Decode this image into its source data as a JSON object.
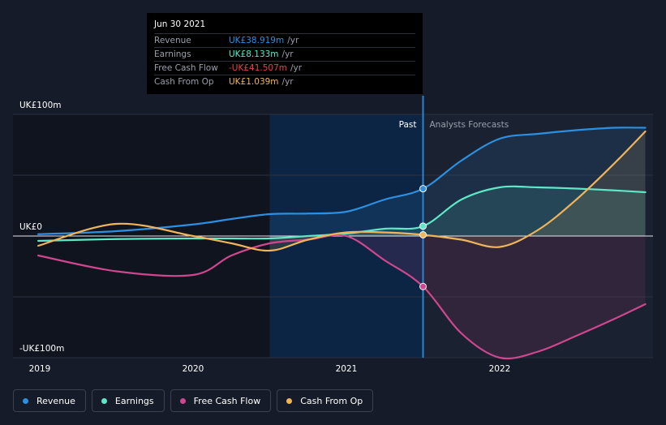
{
  "tooltip": {
    "date": "Jun 30 2021",
    "rows": [
      {
        "label": "Revenue",
        "value": "UK£38.919m",
        "unit": "/yr",
        "color": "#2d8fe0"
      },
      {
        "label": "Earnings",
        "value": "UK£8.133m",
        "unit": "/yr",
        "color": "#5ee8c8"
      },
      {
        "label": "Free Cash Flow",
        "value": "-UK£41.507m",
        "unit": "/yr",
        "color": "#e8404a"
      },
      {
        "label": "Cash From Op",
        "value": "UK£1.039m",
        "unit": "/yr",
        "color": "#f0b45a"
      }
    ]
  },
  "legend": [
    {
      "label": "Revenue",
      "color": "#2d8fe0"
    },
    {
      "label": "Earnings",
      "color": "#5ee8c8"
    },
    {
      "label": "Free Cash Flow",
      "color": "#d0468f"
    },
    {
      "label": "Cash From Op",
      "color": "#f0b45a"
    }
  ],
  "chart_data": {
    "type": "line",
    "title": "",
    "xlabel": "",
    "ylabel": "",
    "y_unit": "UK£m",
    "xlim": [
      2019.0,
      2022.95
    ],
    "ylim": [
      -100,
      100
    ],
    "y_tick_labels": [
      {
        "value": 100,
        "label": "UK£100m"
      },
      {
        "value": 0,
        "label": "UK£0"
      },
      {
        "value": -100,
        "label": "-UK£100m"
      }
    ],
    "x_tick_labels": [
      {
        "value": 2019.0,
        "label": "2019"
      },
      {
        "value": 2020.0,
        "label": "2020"
      },
      {
        "value": 2021.0,
        "label": "2021"
      },
      {
        "value": 2022.0,
        "label": "2022"
      }
    ],
    "past_label": "Past",
    "forecast_label": "Analysts Forecasts",
    "divider_x": 2021.5,
    "highlight_start": 2020.5,
    "series": [
      {
        "name": "Revenue",
        "color": "#2d8fe0",
        "x": [
          2018.99,
          2019.5,
          2020.0,
          2020.25,
          2020.5,
          2020.75,
          2021.0,
          2021.25,
          2021.5,
          2021.75,
          2022.0,
          2022.25,
          2022.5,
          2022.75,
          2022.95
        ],
        "values": [
          1.5,
          4,
          9.5,
          14,
          18,
          18.5,
          20,
          30,
          38.9,
          62,
          80,
          84,
          87,
          89,
          89
        ]
      },
      {
        "name": "Earnings",
        "color": "#5ee8c8",
        "x": [
          2018.99,
          2019.5,
          2020.0,
          2020.25,
          2020.5,
          2020.75,
          2021.0,
          2021.25,
          2021.5,
          2021.75,
          2022.0,
          2022.25,
          2022.5,
          2022.75,
          2022.95
        ],
        "values": [
          -4,
          -2.5,
          -2,
          -2,
          -2,
          0,
          2,
          6,
          8.1,
          30,
          40,
          40,
          39,
          37.5,
          36
        ]
      },
      {
        "name": "Free Cash Flow",
        "color": "#d0468f",
        "x": [
          2018.99,
          2019.5,
          2020.0,
          2020.25,
          2020.5,
          2020.75,
          2021.0,
          2021.25,
          2021.5,
          2021.75,
          2022.0,
          2022.25,
          2022.5,
          2022.75,
          2022.95
        ],
        "values": [
          -16,
          -29,
          -32,
          -16,
          -6,
          -3,
          0,
          -20,
          -41.5,
          -80,
          -100,
          -95,
          -82,
          -68,
          -56
        ]
      },
      {
        "name": "Cash From Op",
        "color": "#f0b45a",
        "x": [
          2018.99,
          2019.5,
          2020.0,
          2020.25,
          2020.5,
          2020.75,
          2021.0,
          2021.25,
          2021.5,
          2021.75,
          2022.0,
          2022.25,
          2022.5,
          2022.75,
          2022.95
        ],
        "values": [
          -8,
          10,
          0,
          -6,
          -12,
          -3,
          3,
          3,
          1,
          -3,
          -9,
          5,
          30,
          60,
          86
        ]
      }
    ]
  }
}
